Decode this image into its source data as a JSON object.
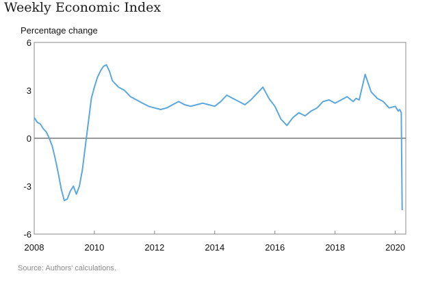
{
  "title": "Weekly Economic Index",
  "source": "Source: Authors' calculations.",
  "chart_data": {
    "type": "line",
    "ylabel": "Percentage change",
    "xlabel": "",
    "xlim": [
      2008,
      2020.35
    ],
    "ylim": [
      -6,
      6
    ],
    "yticks": [
      6,
      3,
      0,
      -3,
      -6
    ],
    "yticklabels": [
      "6",
      "3",
      "0",
      "-3",
      "-6"
    ],
    "xticks": [
      2008,
      2010,
      2012,
      2014,
      2016,
      2018,
      2020
    ],
    "xticklabels": [
      "2008",
      "2010",
      "2012",
      "2014",
      "2016",
      "2018",
      "2020"
    ],
    "reference_line": 0,
    "grid": false,
    "colors": {
      "series": "#5aa7de",
      "zero_line": "#777777",
      "frame": "#888888"
    },
    "series": [
      {
        "x": [
          2008.0,
          2008.1,
          2008.2,
          2008.3,
          2008.4,
          2008.5,
          2008.6,
          2008.7,
          2008.8,
          2008.9,
          2009.0,
          2009.1,
          2009.2,
          2009.3,
          2009.4,
          2009.5,
          2009.6,
          2009.7,
          2009.8,
          2009.9,
          2010.0,
          2010.1,
          2010.2,
          2010.3,
          2010.4,
          2010.5,
          2010.6,
          2010.8,
          2011.0,
          2011.2,
          2011.4,
          2011.6,
          2011.8,
          2012.0,
          2012.2,
          2012.4,
          2012.6,
          2012.8,
          2013.0,
          2013.2,
          2013.4,
          2013.6,
          2013.8,
          2014.0,
          2014.2,
          2014.4,
          2014.6,
          2014.8,
          2015.0,
          2015.2,
          2015.4,
          2015.6,
          2015.8,
          2016.0,
          2016.1,
          2016.2,
          2016.4,
          2016.6,
          2016.8,
          2017.0,
          2017.2,
          2017.4,
          2017.6,
          2017.8,
          2018.0,
          2018.2,
          2018.4,
          2018.6,
          2018.7,
          2018.8,
          2019.0,
          2019.2,
          2019.4,
          2019.6,
          2019.8,
          2020.0,
          2020.1,
          2020.15,
          2020.2,
          2020.23
        ],
        "values": [
          1.3,
          1.0,
          0.9,
          0.6,
          0.4,
          0.0,
          -0.5,
          -1.3,
          -2.2,
          -3.2,
          -3.9,
          -3.8,
          -3.3,
          -3.0,
          -3.5,
          -3.0,
          -2.0,
          -0.5,
          1.0,
          2.5,
          3.2,
          3.8,
          4.2,
          4.5,
          4.6,
          4.2,
          3.6,
          3.2,
          3.0,
          2.6,
          2.4,
          2.2,
          2.0,
          1.9,
          1.8,
          1.9,
          2.1,
          2.3,
          2.1,
          2.0,
          2.1,
          2.2,
          2.1,
          2.0,
          2.3,
          2.7,
          2.5,
          2.3,
          2.1,
          2.4,
          2.8,
          3.2,
          2.5,
          2.0,
          1.6,
          1.2,
          0.8,
          1.3,
          1.6,
          1.4,
          1.7,
          1.9,
          2.3,
          2.4,
          2.2,
          2.4,
          2.6,
          2.3,
          2.5,
          2.4,
          4.0,
          2.9,
          2.5,
          2.3,
          1.9,
          2.0,
          1.7,
          1.8,
          1.6,
          -4.5
        ]
      }
    ]
  }
}
